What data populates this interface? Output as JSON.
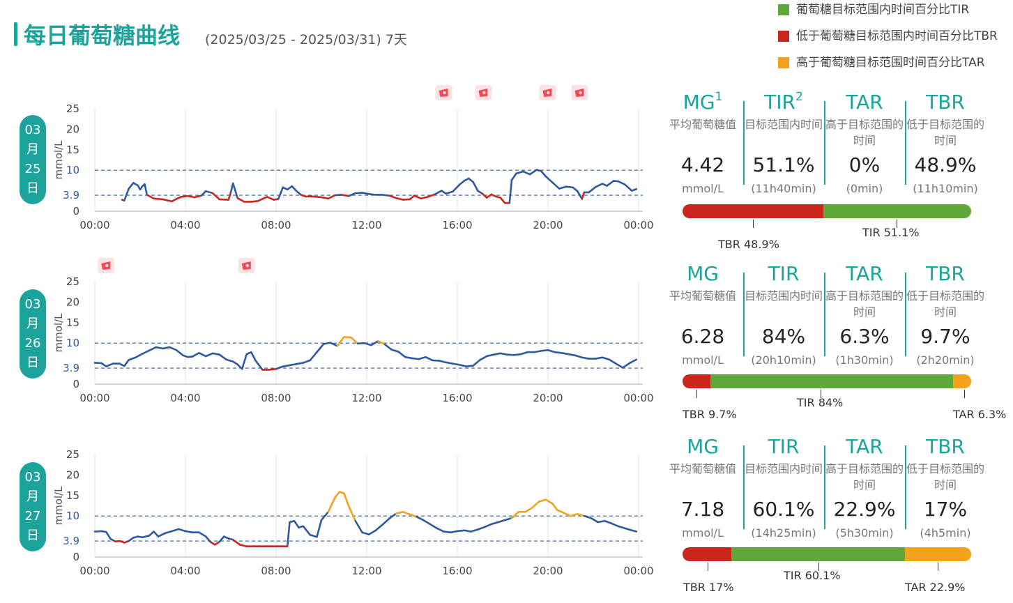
{
  "header": {
    "title": "每日葡萄糖曲线",
    "subtitle": "(2025/03/25 - 2025/03/31) 7天"
  },
  "legend": [
    {
      "label": "葡萄糖目标范围内时间百分比TIR",
      "color": "#5fa83a"
    },
    {
      "label": "低于葡萄糖目标范围内时间百分比TBR",
      "color": "#c8261f"
    },
    {
      "label": "高于葡萄糖目标范围时间百分比TAR",
      "color": "#f2a21b"
    }
  ],
  "colors": {
    "line": "#2e58a0",
    "low": "#c8261f",
    "high": "#f2a21b",
    "in_range": "#5fa83a",
    "accent": "#1ba39c",
    "ref_line": "#2e58a0"
  },
  "stat_headers": {
    "mg": "MG",
    "tir": "TIR",
    "tar": "TAR",
    "tbr": "TBR",
    "mg_desc": "平均葡萄糖值",
    "tir_desc": "目标范围内时间",
    "tar_desc": "高于目标范围的时间",
    "tbr_desc": "低于目标范围的时间",
    "mg_unit": "mmol/L",
    "sup1": "1",
    "sup2": "2"
  },
  "days": [
    {
      "badge": [
        "03",
        "月",
        "25",
        "日"
      ],
      "mg": "4.42",
      "tir": "51.1%",
      "tar": "0%",
      "tbr": "48.9%",
      "tir_dur": "(11h40min)",
      "tar_dur": "(0min)",
      "tbr_dur": "(11h10min)",
      "bar": {
        "tbr": 48.9,
        "tir": 51.1,
        "tar": 0
      },
      "bar_labels": {
        "tbr": "TBR 48.9%",
        "tir": "TIR 51.1%",
        "tar": ""
      },
      "meal_icons": [
        15.4,
        17.15,
        19.98,
        21.4
      ]
    },
    {
      "badge": [
        "03",
        "月",
        "26",
        "日"
      ],
      "mg": "6.28",
      "tir": "84%",
      "tar": "6.3%",
      "tbr": "9.7%",
      "tir_dur": "(20h10min)",
      "tar_dur": "(1h30min)",
      "tbr_dur": "(2h20min)",
      "bar": {
        "tbr": 9.7,
        "tir": 84,
        "tar": 6.3
      },
      "bar_labels": {
        "tbr": "TBR 9.7%",
        "tir": "TIR 84%",
        "tar": "TAR 6.3%"
      },
      "meal_icons": [
        0.5,
        6.7
      ]
    },
    {
      "badge": [
        "03",
        "月",
        "27",
        "日"
      ],
      "mg": "7.18",
      "tir": "60.1%",
      "tar": "22.9%",
      "tbr": "17%",
      "tir_dur": "(14h25min)",
      "tar_dur": "(5h30min)",
      "tbr_dur": "(4h5min)",
      "bar": {
        "tbr": 17,
        "tir": 60.1,
        "tar": 22.9
      },
      "bar_labels": {
        "tbr": "TBR 17%",
        "tir": "TIR 60.1%",
        "tar": "TAR 22.9%"
      },
      "meal_icons": []
    }
  ],
  "chart_data": [
    {
      "type": "line",
      "ylabel": "mmol/L",
      "x_ticks": [
        "00:00",
        "04:00",
        "08:00",
        "12:00",
        "16:00",
        "20:00",
        "00:00"
      ],
      "y_ticks": [
        0,
        3.9,
        10,
        15,
        20,
        25
      ],
      "xlim": [
        0,
        24
      ],
      "ylim": [
        0,
        25
      ],
      "ref_lines": [
        3.9,
        10
      ],
      "series": [
        {
          "x": [
            1.2,
            1.3,
            1.5,
            1.7,
            1.9,
            2.0,
            2.1,
            2.2,
            2.3,
            2.6,
            3.0,
            3.4,
            3.6,
            3.8,
            4.1,
            4.4,
            4.7,
            4.9,
            5.2,
            5.5,
            5.9,
            6.0,
            6.1,
            6.3,
            6.6,
            6.9,
            7.2,
            7.4,
            7.6,
            7.9,
            8.1,
            8.3,
            8.5,
            8.7,
            8.9,
            9.1,
            9.3,
            9.6,
            10.0,
            10.3,
            10.6,
            10.9,
            11.2,
            11.5,
            11.8,
            12.1,
            12.4,
            12.7,
            13.0,
            13.3,
            13.6,
            13.9,
            14.1,
            14.4,
            14.7,
            15.0,
            15.3,
            15.5,
            15.8,
            16.1,
            16.3,
            16.5,
            16.7,
            16.9,
            17.1,
            17.3,
            17.5,
            17.7,
            17.9,
            18.1,
            18.3,
            18.4,
            18.6,
            18.9,
            19.2,
            19.5,
            19.7,
            19.9,
            20.2,
            20.5,
            20.8,
            21.1,
            21.3,
            21.5,
            21.6,
            21.8,
            22.1,
            22.4,
            22.6,
            22.9,
            23.1,
            23.4,
            23.7,
            23.9
          ],
          "y": [
            2.8,
            2.6,
            5.5,
            6.9,
            6.3,
            5.3,
            6.1,
            6.6,
            4.0,
            3.1,
            2.9,
            2.4,
            3.0,
            3.5,
            3.7,
            3.4,
            3.8,
            4.9,
            4.4,
            2.9,
            2.8,
            4.6,
            6.8,
            3.2,
            2.3,
            2.3,
            2.5,
            3.0,
            3.5,
            2.8,
            3.0,
            5.8,
            5.3,
            6.1,
            4.9,
            4.0,
            3.6,
            3.6,
            3.4,
            3.1,
            3.9,
            4.0,
            3.7,
            4.4,
            4.5,
            4.2,
            4.0,
            4.0,
            3.8,
            3.2,
            2.8,
            2.9,
            3.8,
            3.1,
            3.5,
            4.1,
            5.0,
            4.3,
            4.8,
            6.5,
            7.4,
            8.0,
            7.1,
            5.0,
            4.3,
            3.3,
            4.1,
            3.6,
            3.3,
            2.0,
            2.0,
            7.6,
            9.2,
            9.7,
            9.0,
            10.1,
            9.8,
            8.5,
            7.0,
            5.5,
            6.0,
            5.8,
            4.9,
            3.0,
            4.6,
            4.6,
            5.9,
            6.7,
            6.2,
            7.4,
            7.3,
            6.5,
            5.0,
            5.4
          ]
        }
      ]
    },
    {
      "type": "line",
      "ylabel": "mmol/L",
      "x_ticks": [
        "00:00",
        "04:00",
        "08:00",
        "12:00",
        "16:00",
        "20:00",
        "00:00"
      ],
      "y_ticks": [
        0,
        3.9,
        10,
        15,
        20,
        25
      ],
      "xlim": [
        0,
        24
      ],
      "ylim": [
        0,
        25
      ],
      "ref_lines": [
        3.9,
        10
      ],
      "series": [
        {
          "x": [
            0.0,
            0.3,
            0.5,
            0.8,
            1.1,
            1.3,
            1.5,
            1.8,
            2.1,
            2.4,
            2.7,
            3.0,
            3.3,
            3.6,
            3.9,
            4.1,
            4.3,
            4.6,
            4.9,
            5.2,
            5.5,
            5.8,
            6.1,
            6.3,
            6.5,
            6.7,
            6.9,
            7.1,
            7.4,
            7.7,
            8.0,
            8.3,
            8.6,
            8.9,
            9.2,
            9.5,
            9.8,
            10.1,
            10.4,
            10.7,
            11.0,
            11.3,
            11.6,
            11.9,
            12.2,
            12.5,
            12.8,
            13.1,
            13.4,
            13.7,
            14.0,
            14.3,
            14.6,
            14.9,
            15.2,
            15.5,
            15.8,
            16.1,
            16.4,
            16.7,
            17.0,
            17.3,
            17.6,
            17.9,
            18.2,
            18.5,
            18.8,
            19.1,
            19.4,
            19.7,
            20.0,
            20.3,
            20.6,
            20.9,
            21.2,
            21.5,
            21.8,
            22.1,
            22.4,
            22.7,
            23.0,
            23.3,
            23.6,
            23.9
          ],
          "y": [
            5.2,
            5.1,
            4.3,
            5.0,
            5.0,
            4.4,
            5.9,
            6.5,
            7.4,
            8.2,
            9.0,
            8.7,
            9.0,
            8.3,
            7.0,
            6.6,
            6.7,
            7.6,
            6.8,
            7.5,
            7.2,
            6.0,
            5.5,
            4.8,
            3.7,
            7.3,
            7.8,
            5.7,
            3.5,
            3.5,
            3.7,
            4.3,
            4.6,
            4.9,
            5.2,
            5.8,
            7.8,
            9.8,
            10.1,
            9.3,
            11.5,
            11.4,
            9.9,
            10.0,
            9.5,
            10.5,
            9.7,
            8.4,
            7.9,
            6.6,
            6.3,
            6.1,
            6.6,
            5.8,
            5.7,
            5.3,
            5.0,
            4.7,
            4.3,
            4.5,
            5.9,
            6.8,
            7.2,
            7.5,
            7.2,
            7.1,
            7.3,
            7.8,
            7.8,
            8.1,
            8.3,
            7.8,
            7.6,
            7.3,
            7.0,
            6.5,
            6.2,
            6.2,
            6.5,
            6.0,
            5.0,
            4.0,
            5.1,
            6.0
          ]
        }
      ]
    },
    {
      "type": "line",
      "ylabel": "mmol/L",
      "x_ticks": [
        "00:00",
        "04:00",
        "08:00",
        "12:00",
        "16:00",
        "20:00",
        "00:00"
      ],
      "y_ticks": [
        0,
        3.9,
        10,
        15,
        20,
        25
      ],
      "xlim": [
        0,
        24
      ],
      "ylim": [
        0,
        25
      ],
      "ref_lines": [
        3.9,
        10
      ],
      "series": [
        {
          "x": [
            0.0,
            0.3,
            0.5,
            0.7,
            0.9,
            1.1,
            1.3,
            1.5,
            1.7,
            1.9,
            2.1,
            2.4,
            2.6,
            2.8,
            3.1,
            3.4,
            3.7,
            4.0,
            4.3,
            4.6,
            4.9,
            5.1,
            5.3,
            5.5,
            5.7,
            5.9,
            6.1,
            6.4,
            6.7,
            7.0,
            7.3,
            7.6,
            7.9,
            8.2,
            8.5,
            8.6,
            8.8,
            9.0,
            9.2,
            9.5,
            9.8,
            10.0,
            10.3,
            10.6,
            10.8,
            11.0,
            11.2,
            11.5,
            11.8,
            12.1,
            12.4,
            12.7,
            13.0,
            13.3,
            13.6,
            13.9,
            14.2,
            14.5,
            14.8,
            15.1,
            15.4,
            15.7,
            16.0,
            16.3,
            16.6,
            16.9,
            17.2,
            17.5,
            17.8,
            18.1,
            18.4,
            18.7,
            19.0,
            19.3,
            19.6,
            19.9,
            20.2,
            20.4,
            20.6,
            20.8,
            21.0,
            21.3,
            21.6,
            21.9,
            22.2,
            22.5,
            22.8,
            23.1,
            23.4,
            23.7,
            23.9
          ],
          "y": [
            6.2,
            6.3,
            6.1,
            4.4,
            3.8,
            3.9,
            3.5,
            3.9,
            4.7,
            5.0,
            4.8,
            5.2,
            6.2,
            5.0,
            5.8,
            6.3,
            6.8,
            6.3,
            6.0,
            6.0,
            5.0,
            3.7,
            3.0,
            3.7,
            5.0,
            4.5,
            4.2,
            3.0,
            2.6,
            2.6,
            2.6,
            2.6,
            2.6,
            2.6,
            2.6,
            8.5,
            8.8,
            7.2,
            7.5,
            5.4,
            4.9,
            9.0,
            11.0,
            14.5,
            15.9,
            15.5,
            12.5,
            8.8,
            6.0,
            5.5,
            6.5,
            7.9,
            9.4,
            10.6,
            11.0,
            10.4,
            9.8,
            9.0,
            8.0,
            7.0,
            6.2,
            6.0,
            6.3,
            6.5,
            6.2,
            6.7,
            7.3,
            8.0,
            8.5,
            9.0,
            9.5,
            11.0,
            11.0,
            12.0,
            13.5,
            14.0,
            13.0,
            11.5,
            11.0,
            10.5,
            10.0,
            10.5,
            10.0,
            9.5,
            8.5,
            8.8,
            8.2,
            7.5,
            7.0,
            6.5,
            6.2
          ]
        }
      ]
    }
  ]
}
